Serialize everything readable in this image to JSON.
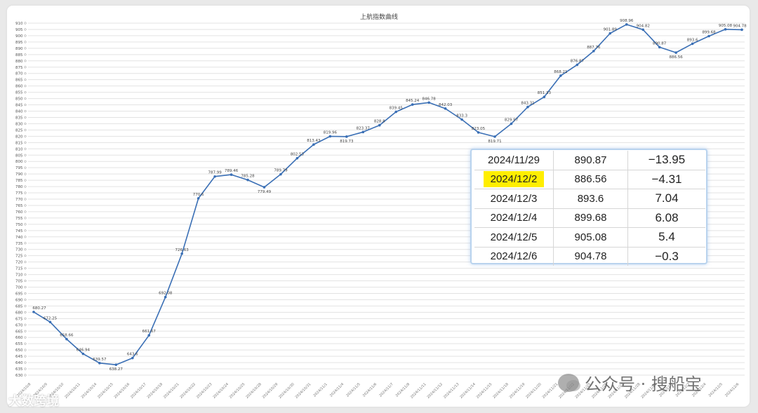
{
  "chart_data": {
    "type": "line",
    "title": "上航指数曲线",
    "xlabel": "",
    "ylabel": "",
    "ylim": [
      630,
      910
    ],
    "ytick_step": 5,
    "grid": true,
    "line_color": "#3a6fb5",
    "points": [
      {
        "x": "2024/10/8",
        "y": 680.27,
        "label": "680.27"
      },
      {
        "x": "2024/10/9",
        "y": 672.25,
        "label": "672.25"
      },
      {
        "x": "2024/10/10",
        "y": 658.66,
        "label": "658.66"
      },
      {
        "x": "2024/10/11",
        "y": 646.94,
        "label": "646.94"
      },
      {
        "x": "2024/10/14",
        "y": 639.57,
        "label": "639.57"
      },
      {
        "x": "2024/10/15",
        "y": 638.27,
        "label": "638.27"
      },
      {
        "x": "2024/10/16",
        "y": 643.6,
        "label": "643.6"
      },
      {
        "x": "2024/10/17",
        "y": 661.67,
        "label": "661.67"
      },
      {
        "x": "2024/10/18",
        "y": 692.08,
        "label": "692.08"
      },
      {
        "x": "2024/10/21",
        "y": 726.63,
        "label": "726.63"
      },
      {
        "x": "2024/10/22",
        "y": 770.6,
        "label": "770.6"
      },
      {
        "x": "2024/10/23",
        "y": 787.99,
        "label": "787.99"
      },
      {
        "x": "2024/10/24",
        "y": 789.46,
        "label": "789.46"
      },
      {
        "x": "2024/10/25",
        "y": 785.28,
        "label": "785.28"
      },
      {
        "x": "2024/10/28",
        "y": 779.49,
        "label": "779.49"
      },
      {
        "x": "2024/10/29",
        "y": 789.79,
        "label": "789.79"
      },
      {
        "x": "2024/10/30",
        "y": 802.53,
        "label": "802.53"
      },
      {
        "x": "2024/10/31",
        "y": 813.43,
        "label": "813.43"
      },
      {
        "x": "2024/11/1",
        "y": 819.96,
        "label": "819.96"
      },
      {
        "x": "2024/11/4",
        "y": 819.73,
        "label": "819.73"
      },
      {
        "x": "2024/11/5",
        "y": 823.37,
        "label": "823.37"
      },
      {
        "x": "2024/11/6",
        "y": 828.8,
        "label": "828.8"
      },
      {
        "x": "2024/11/7",
        "y": 839.45,
        "label": "839.45"
      },
      {
        "x": "2024/11/8",
        "y": 845.24,
        "label": "845.24"
      },
      {
        "x": "2024/11/11",
        "y": 846.78,
        "label": "846.78"
      },
      {
        "x": "2024/11/12",
        "y": 842.03,
        "label": "842.03"
      },
      {
        "x": "2024/11/13",
        "y": 833.3,
        "label": "833.3"
      },
      {
        "x": "2024/11/14",
        "y": 823.05,
        "label": "823.05"
      },
      {
        "x": "2024/11/15",
        "y": 819.71,
        "label": "819.71"
      },
      {
        "x": "2024/11/18",
        "y": 829.97,
        "label": "829.97"
      },
      {
        "x": "2024/11/19",
        "y": 843.31,
        "label": "843.31"
      },
      {
        "x": "2024/11/20",
        "y": 851.33,
        "label": "851.33"
      },
      {
        "x": "2024/11/21",
        "y": 868.21,
        "label": "868.21"
      },
      {
        "x": "2024/11/22",
        "y": 876.87,
        "label": "876.87"
      },
      {
        "x": "2024/11/25",
        "y": 887.76,
        "label": "887.76"
      },
      {
        "x": "2024/11/26",
        "y": 901.89,
        "label": "901.89"
      },
      {
        "x": "2024/11/27",
        "y": 908.96,
        "label": "908.96"
      },
      {
        "x": "2024/11/28",
        "y": 904.82,
        "label": "904.82"
      },
      {
        "x": "2024/11/29",
        "y": 890.87,
        "label": "890.87"
      },
      {
        "x": "2024/12/2",
        "y": 886.56,
        "label": "886.56"
      },
      {
        "x": "2024/12/3",
        "y": 893.6,
        "label": "893.6"
      },
      {
        "x": "2024/12/4",
        "y": 899.68,
        "label": "899.68"
      },
      {
        "x": "2024/12/5",
        "y": 905.08,
        "label": "905.08"
      },
      {
        "x": "2024/12/6",
        "y": 904.78,
        "label": "904.78"
      }
    ]
  },
  "table": {
    "highlight_color": "#ffee00",
    "rows": [
      {
        "date": "2024/11/29",
        "value": "890.87",
        "change": "−13.95",
        "dir": "neg"
      },
      {
        "date": "2024/12/2",
        "value": "886.56",
        "change": "−4.31",
        "dir": "neg",
        "highlight": true
      },
      {
        "date": "2024/12/3",
        "value": "893.6",
        "change": "7.04",
        "dir": "pos"
      },
      {
        "date": "2024/12/4",
        "value": "899.68",
        "change": "6.08",
        "dir": "pos"
      },
      {
        "date": "2024/12/5",
        "value": "905.08",
        "change": "5.4",
        "dir": "pos"
      },
      {
        "date": "2024/12/6",
        "value": "904.78",
        "change": "−0.3",
        "dir": "neg"
      }
    ]
  },
  "watermarks": {
    "left": "大数跨境",
    "right": "公众号 · 搜船宝"
  }
}
